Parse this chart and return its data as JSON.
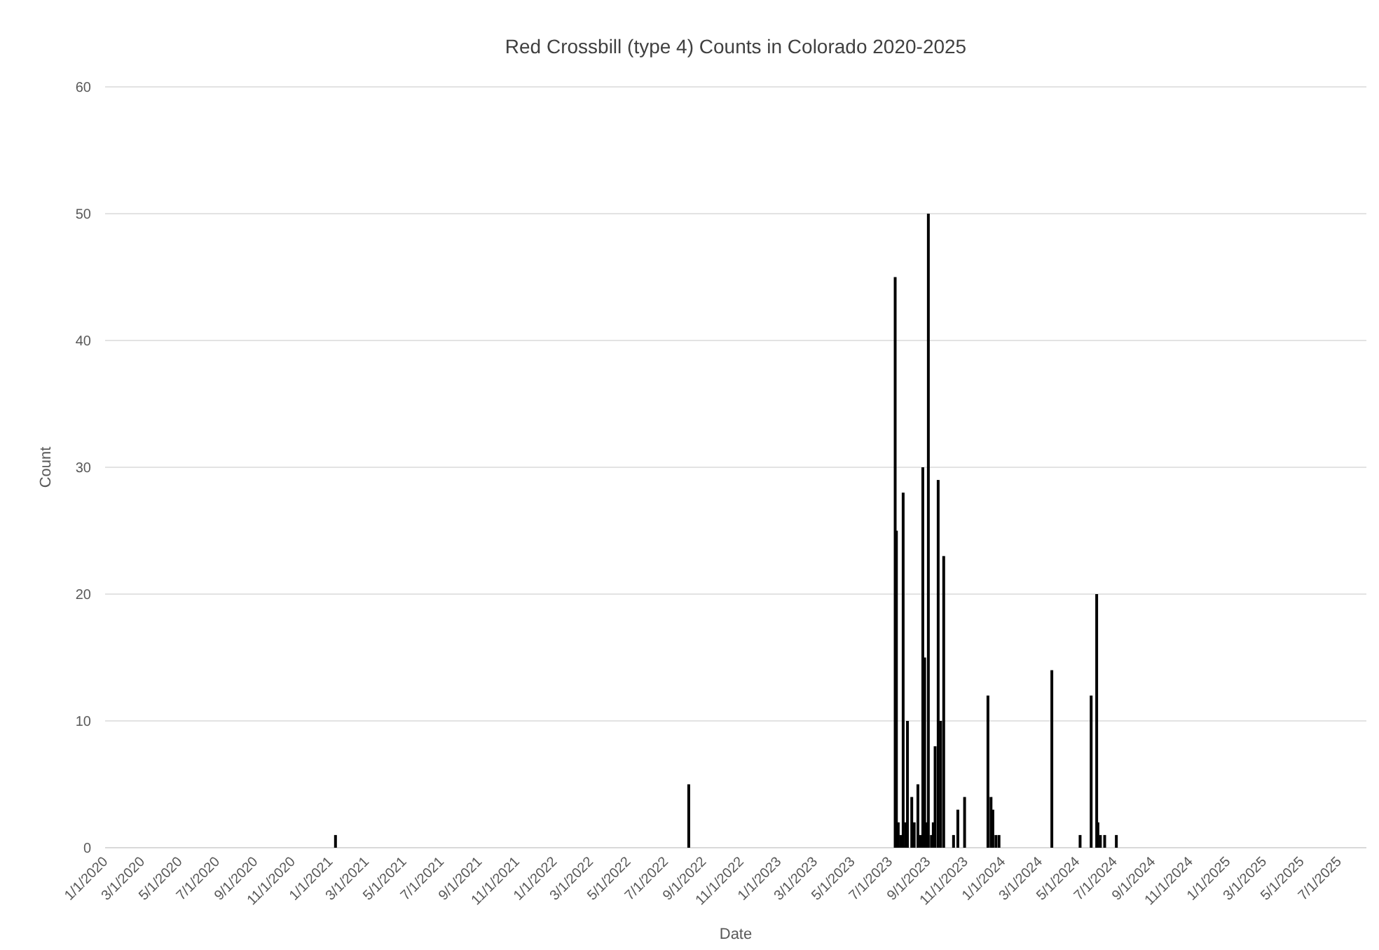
{
  "chart_data": {
    "type": "bar",
    "title": "Red Crossbill (type 4) Counts in Colorado 2020-2025",
    "xlabel": "Date",
    "ylabel": "Count",
    "color": "#000000",
    "x": [
      "2021-01-10",
      "2022-08-08",
      "2023-07-10",
      "2023-07-12",
      "2023-07-15",
      "2023-07-19",
      "2023-07-23",
      "2023-07-27",
      "2023-07-30",
      "2023-08-06",
      "2023-08-10",
      "2023-08-16",
      "2023-08-20",
      "2023-08-24",
      "2023-08-27",
      "2023-08-30",
      "2023-09-02",
      "2023-09-07",
      "2023-09-10",
      "2023-09-13",
      "2023-09-18",
      "2023-09-22",
      "2023-09-27",
      "2023-10-13",
      "2023-10-20",
      "2023-10-31",
      "2023-12-08",
      "2023-12-13",
      "2023-12-16",
      "2023-12-21",
      "2023-12-26",
      "2024-03-21",
      "2024-05-06",
      "2024-05-24",
      "2024-06-02",
      "2024-06-04",
      "2024-06-08",
      "2024-06-15",
      "2024-07-04"
    ],
    "values": [
      1,
      5,
      45,
      25,
      2,
      1,
      28,
      2,
      10,
      4,
      2,
      5,
      1,
      30,
      15,
      2,
      50,
      1,
      2,
      8,
      29,
      10,
      23,
      1,
      3,
      4,
      12,
      4,
      3,
      1,
      1,
      14,
      1,
      12,
      20,
      2,
      1,
      1,
      1
    ],
    "xlim": [
      "2020-01-01",
      "2025-08-15"
    ],
    "xticks": [
      {
        "value": "2020-01-01",
        "label": "1/1/2020"
      },
      {
        "value": "2020-03-01",
        "label": "3/1/2020"
      },
      {
        "value": "2020-05-01",
        "label": "5/1/2020"
      },
      {
        "value": "2020-07-01",
        "label": "7/1/2020"
      },
      {
        "value": "2020-09-01",
        "label": "9/1/2020"
      },
      {
        "value": "2020-11-01",
        "label": "11/1/2020"
      },
      {
        "value": "2021-01-01",
        "label": "1/1/2021"
      },
      {
        "value": "2021-03-01",
        "label": "3/1/2021"
      },
      {
        "value": "2021-05-01",
        "label": "5/1/2021"
      },
      {
        "value": "2021-07-01",
        "label": "7/1/2021"
      },
      {
        "value": "2021-09-01",
        "label": "9/1/2021"
      },
      {
        "value": "2021-11-01",
        "label": "11/1/2021"
      },
      {
        "value": "2022-01-01",
        "label": "1/1/2022"
      },
      {
        "value": "2022-03-01",
        "label": "3/1/2022"
      },
      {
        "value": "2022-05-01",
        "label": "5/1/2022"
      },
      {
        "value": "2022-07-01",
        "label": "7/1/2022"
      },
      {
        "value": "2022-09-01",
        "label": "9/1/2022"
      },
      {
        "value": "2022-11-01",
        "label": "11/1/2022"
      },
      {
        "value": "2023-01-01",
        "label": "1/1/2023"
      },
      {
        "value": "2023-03-01",
        "label": "3/1/2023"
      },
      {
        "value": "2023-05-01",
        "label": "5/1/2023"
      },
      {
        "value": "2023-07-01",
        "label": "7/1/2023"
      },
      {
        "value": "2023-09-01",
        "label": "9/1/2023"
      },
      {
        "value": "2023-11-01",
        "label": "11/1/2023"
      },
      {
        "value": "2024-01-01",
        "label": "1/1/2024"
      },
      {
        "value": "2024-03-01",
        "label": "3/1/2024"
      },
      {
        "value": "2024-05-01",
        "label": "5/1/2024"
      },
      {
        "value": "2024-07-01",
        "label": "7/1/2024"
      },
      {
        "value": "2024-09-01",
        "label": "9/1/2024"
      },
      {
        "value": "2024-11-01",
        "label": "11/1/2024"
      },
      {
        "value": "2025-01-01",
        "label": "1/1/2025"
      },
      {
        "value": "2025-03-01",
        "label": "3/1/2025"
      },
      {
        "value": "2025-05-01",
        "label": "5/1/2025"
      },
      {
        "value": "2025-07-01",
        "label": "7/1/2025"
      }
    ],
    "ylim": [
      0,
      60
    ],
    "yticks": [
      0,
      10,
      20,
      30,
      40,
      50,
      60
    ],
    "grid": "y"
  }
}
